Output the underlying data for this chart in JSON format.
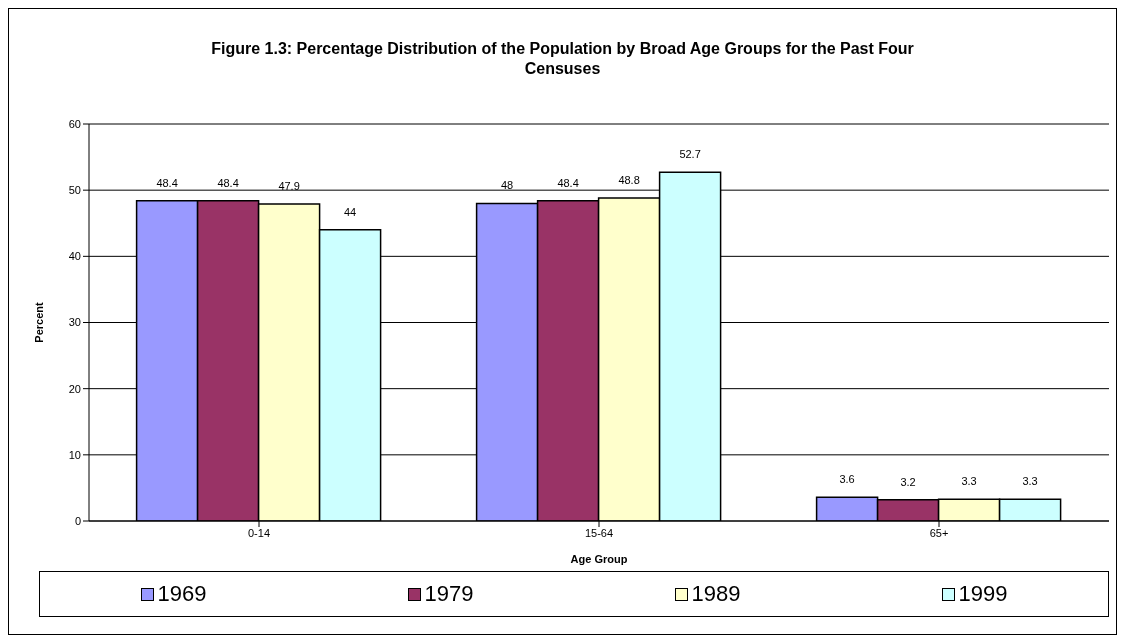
{
  "chart_data": {
    "type": "bar",
    "title": "Figure 1.3: Percentage Distribution of the Population by Broad Age Groups for the Past Four Censuses",
    "xlabel": "Age Group",
    "ylabel": "Percent",
    "categories": [
      "0-14",
      "15-64",
      "65+"
    ],
    "series": [
      {
        "name": "1969",
        "color": "#9999ff",
        "values": [
          48.4,
          48,
          3.6
        ]
      },
      {
        "name": "1979",
        "color": "#993366",
        "values": [
          48.4,
          48.4,
          3.2
        ]
      },
      {
        "name": "1989",
        "color": "#ffffcc",
        "values": [
          47.9,
          48.8,
          3.3
        ]
      },
      {
        "name": "1999",
        "color": "#ccffff",
        "values": [
          44,
          52.7,
          3.3
        ]
      }
    ],
    "ylim": [
      0,
      60
    ],
    "yticks": [
      0,
      10,
      20,
      30,
      40,
      50,
      60
    ],
    "grid": "y",
    "legend": "bottom",
    "data_labels": true
  }
}
